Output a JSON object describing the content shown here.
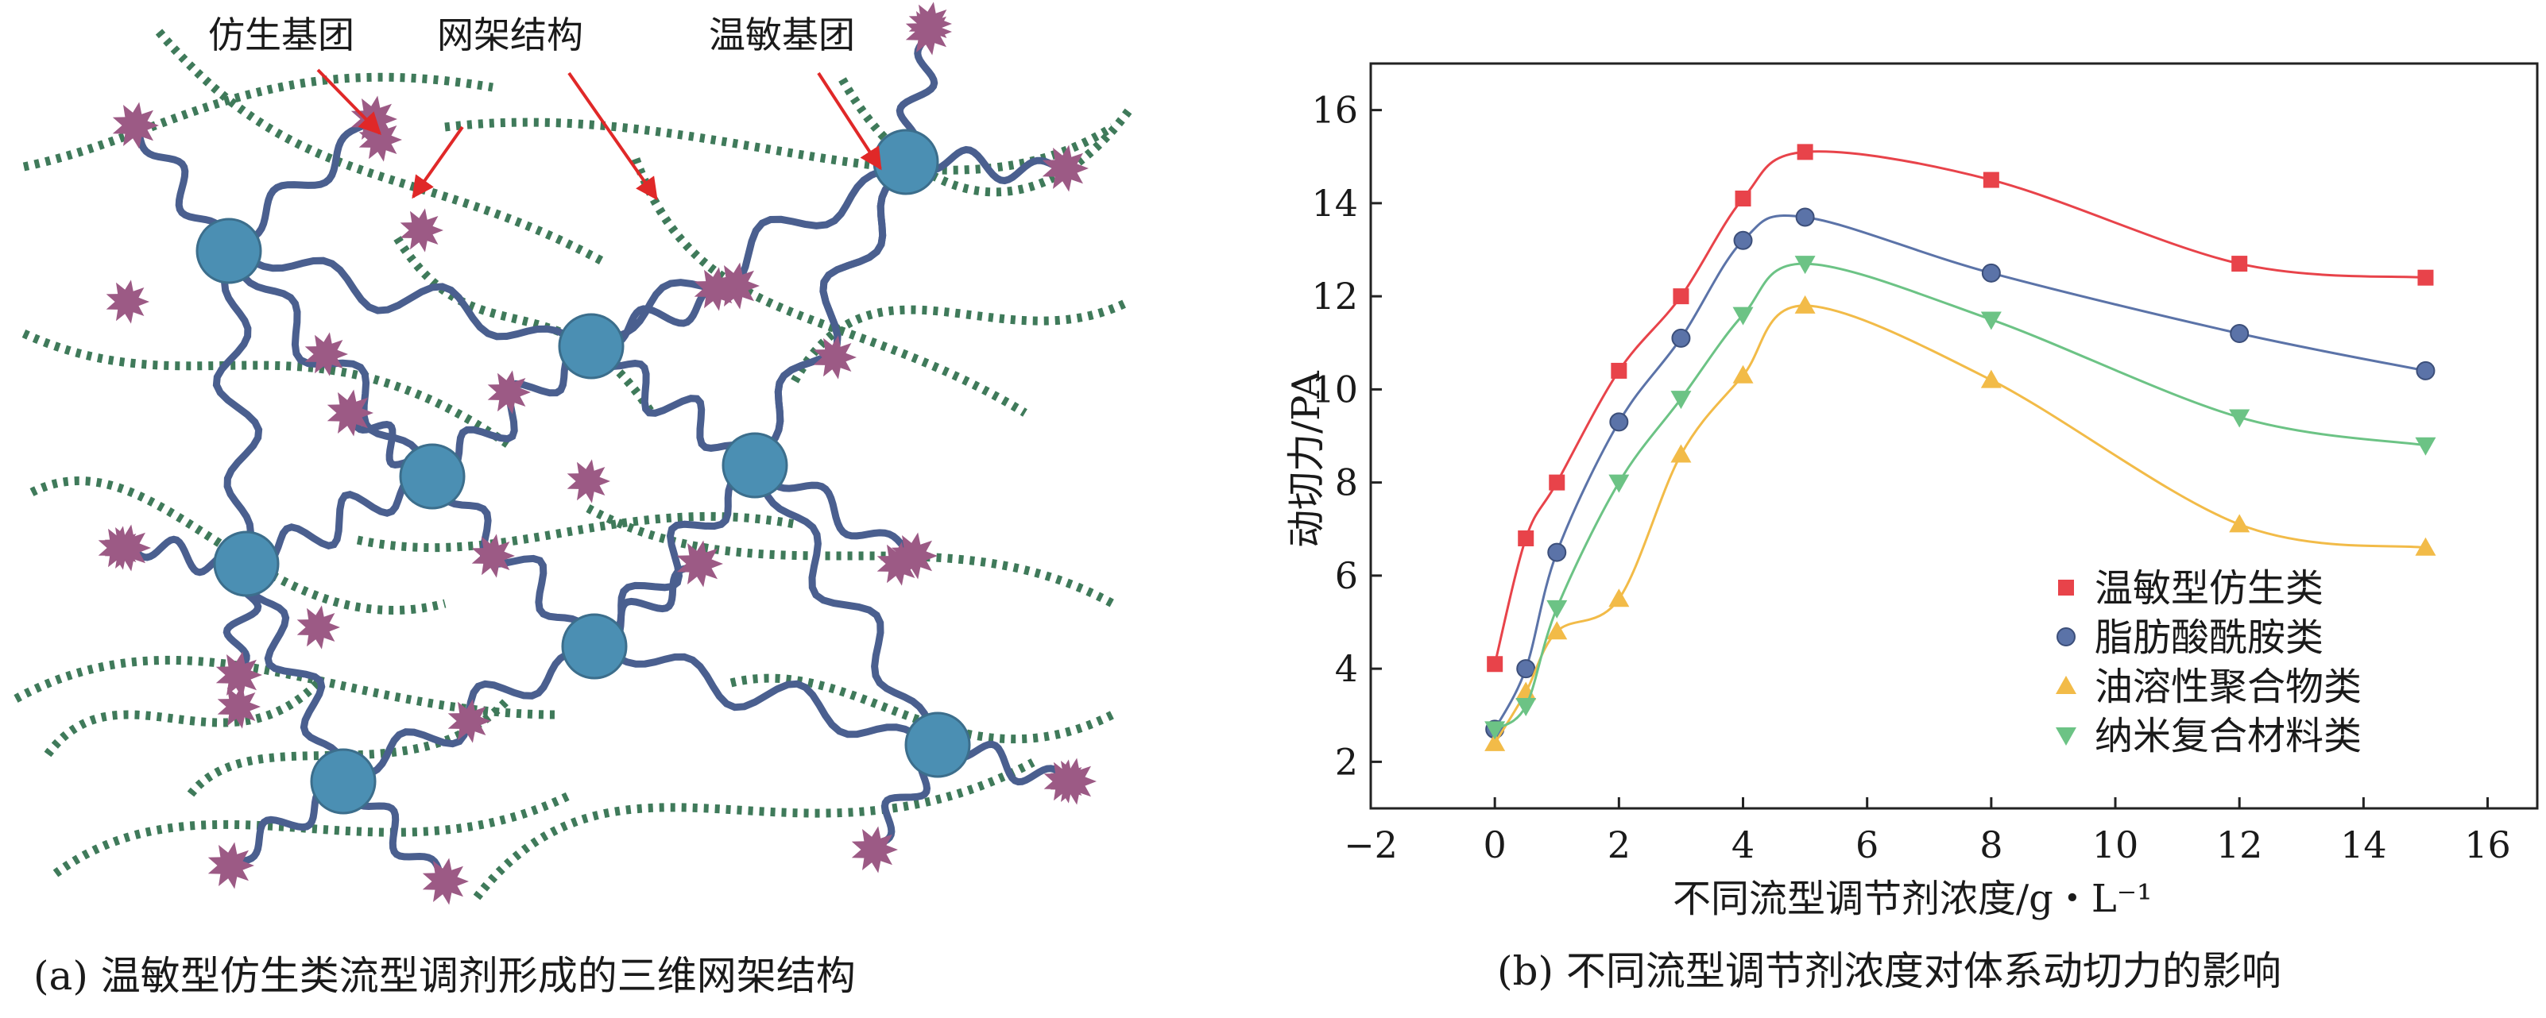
{
  "panel_a": {
    "labels": {
      "bionic": "仿生基团",
      "network": "网架结构",
      "thermo": "温敏基团"
    },
    "caption": "(a) 温敏型仿生类流型调剂形成的三维网架结构",
    "colors": {
      "chain": "#4a5f8f",
      "dotted": "#3f7a5a",
      "node": "#4b8fb3",
      "star": "#9c5a85",
      "arrow": "#e02828"
    }
  },
  "panel_b": {
    "caption": "(b) 不同流型调节剂浓度对体系动切力的影响"
  },
  "chart_data": {
    "type": "line",
    "xlabel": "不同流型调节剂浓度/g・L⁻¹",
    "ylabel": "动切力/PA",
    "xlim": [
      -2,
      16.8
    ],
    "ylim": [
      1,
      17
    ],
    "xticks": [
      -2,
      0,
      2,
      4,
      6,
      8,
      10,
      12,
      14,
      16
    ],
    "yticks": [
      2,
      4,
      6,
      8,
      10,
      12,
      14,
      16
    ],
    "grid": false,
    "legend_position": "bottom-right",
    "series": [
      {
        "name": "温敏型仿生类",
        "marker": "square",
        "color": "#e8434a",
        "x": [
          0,
          0.5,
          1,
          2,
          3,
          4,
          5,
          8,
          12,
          15
        ],
        "y": [
          4.1,
          6.8,
          8.0,
          10.4,
          12.0,
          14.1,
          15.1,
          14.5,
          12.7,
          12.4
        ]
      },
      {
        "name": "脂肪酸酰胺类",
        "marker": "circle",
        "color": "#5b73a8",
        "x": [
          0,
          0.5,
          1,
          2,
          3,
          4,
          5,
          8,
          12,
          15
        ],
        "y": [
          2.7,
          4.0,
          6.5,
          9.3,
          11.1,
          13.2,
          13.7,
          12.5,
          11.2,
          10.4
        ]
      },
      {
        "name": "油溶性聚合物类",
        "marker": "triangle-up",
        "color": "#f2bb48",
        "x": [
          0,
          0.5,
          1,
          2,
          3,
          4,
          5,
          8,
          12,
          15
        ],
        "y": [
          2.4,
          3.5,
          4.8,
          5.5,
          8.6,
          10.3,
          11.8,
          10.2,
          7.1,
          6.6
        ]
      },
      {
        "name": "纳米复合材料类",
        "marker": "triangle-down",
        "color": "#6cc385",
        "x": [
          0,
          0.5,
          1,
          2,
          3,
          4,
          5,
          8,
          12,
          15
        ],
        "y": [
          2.7,
          3.2,
          5.3,
          8.0,
          9.8,
          11.6,
          12.7,
          11.5,
          9.4,
          8.8
        ]
      }
    ]
  }
}
